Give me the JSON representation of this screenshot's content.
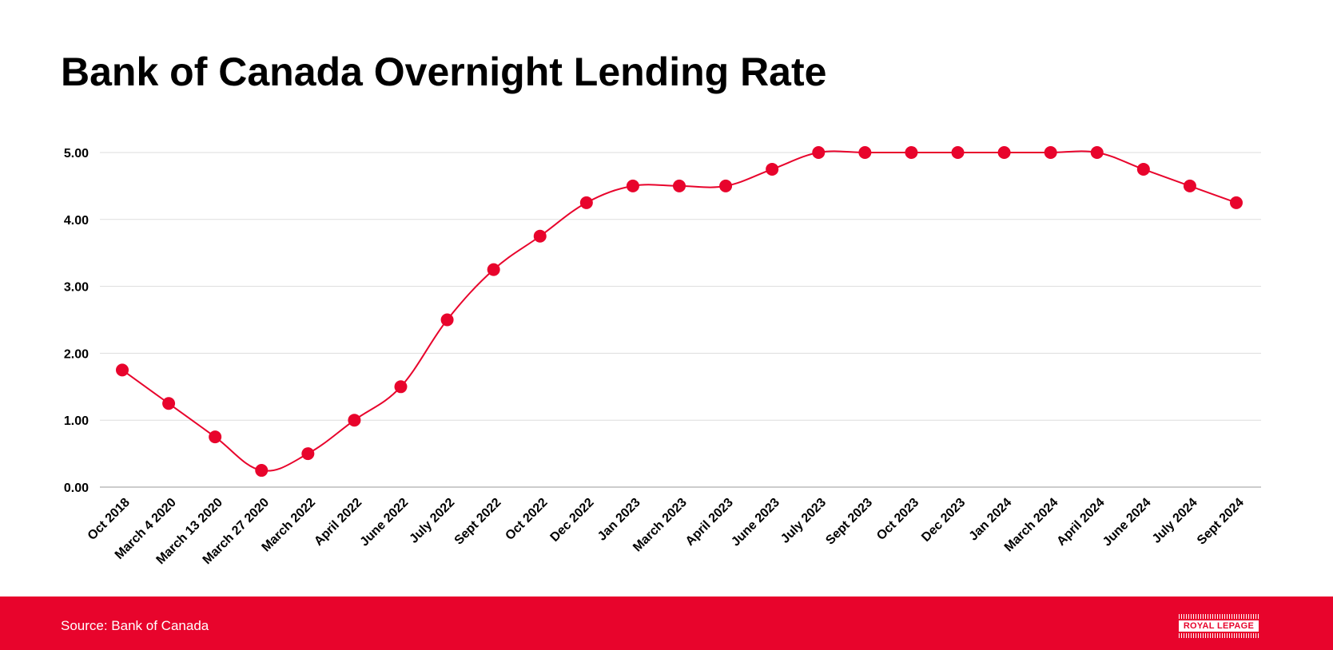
{
  "page": {
    "title": "Bank of Canada Overnight Lending Rate",
    "source": "Source: Bank of Canada",
    "logo_text": "ROYAL LEPAGE",
    "footer_color": "#E8042C"
  },
  "chart_data": {
    "type": "line",
    "title": "Bank of Canada Overnight Lending Rate",
    "xlabel": "",
    "ylabel": "",
    "categories": [
      "Oct 2018",
      "March 4 2020",
      "March 13 2020",
      "March 27 2020",
      "March 2022",
      "April 2022",
      "June 2022",
      "July 2022",
      "Sept 2022",
      "Oct 2022",
      "Dec 2022",
      "Jan 2023",
      "March 2023",
      "April 2023",
      "June 2023",
      "July 2023",
      "Sept 2023",
      "Oct 2023",
      "Dec 2023",
      "Jan 2024",
      "March 2024",
      "April 2024",
      "June 2024",
      "July 2024",
      "Sept 2024"
    ],
    "series": [
      {
        "values": [
          1.75,
          1.25,
          0.75,
          0.25,
          0.5,
          1.0,
          1.5,
          2.5,
          3.25,
          3.75,
          4.25,
          4.5,
          4.5,
          4.5,
          4.75,
          5.0,
          5.0,
          5.0,
          5.0,
          5.0,
          5.0,
          5.0,
          4.75,
          4.5,
          4.25
        ],
        "color": "#E8042C"
      }
    ],
    "ylim": [
      0,
      5
    ],
    "yticks": [
      "0.00",
      "1.00",
      "2.00",
      "3.00",
      "4.00",
      "5.00"
    ],
    "grid": true,
    "smooth": true,
    "markers": true,
    "legend": "none",
    "colors": {
      "line": "#E8042C",
      "grid": "#DDDDDD",
      "axis": "#999999"
    }
  }
}
